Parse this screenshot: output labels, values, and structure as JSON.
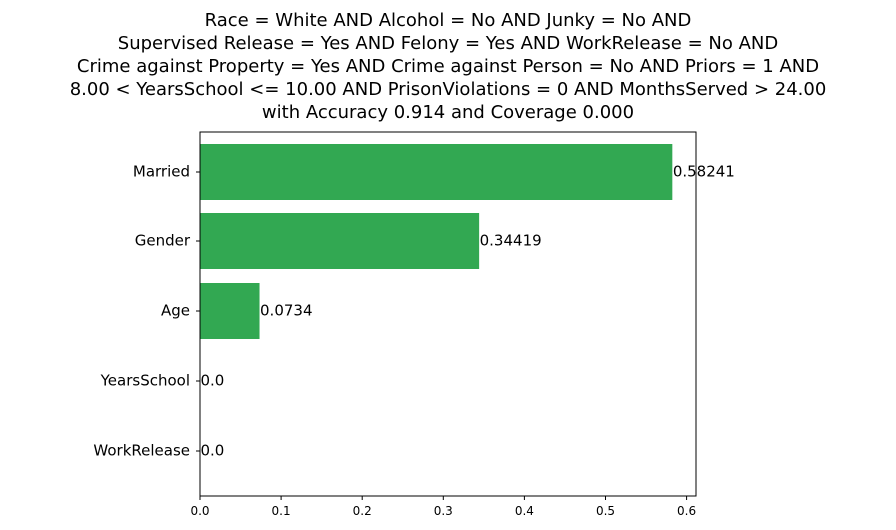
{
  "chart_data": {
    "type": "bar",
    "orientation": "horizontal",
    "title_lines": [
      "Race = White AND Alcohol = No AND Junky = No AND",
      "Supervised Release = Yes AND Felony = Yes AND WorkRelease = No AND",
      "Crime against Property = Yes AND Crime against Person = No AND Priors = 1 AND",
      "8.00 < YearsSchool <= 10.00 AND PrisonViolations = 0 AND MonthsServed > 24.00",
      "with Accuracy 0.914 and Coverage 0.000"
    ],
    "categories": [
      "Married",
      "Gender",
      "Age",
      "YearsSchool",
      "WorkRelease"
    ],
    "values": [
      0.58241,
      0.34419,
      0.0734,
      0.0,
      0.0
    ],
    "value_labels": [
      "0.58241",
      "0.34419",
      "0.0734",
      "0.0",
      "0.0"
    ],
    "xticks": [
      "0.0",
      "0.1",
      "0.2",
      "0.3",
      "0.4",
      "0.5",
      "0.6"
    ],
    "xlim": [
      0,
      0.6116
    ],
    "bar_color": "#32a852",
    "grid": false,
    "xlabel": "",
    "ylabel": ""
  }
}
